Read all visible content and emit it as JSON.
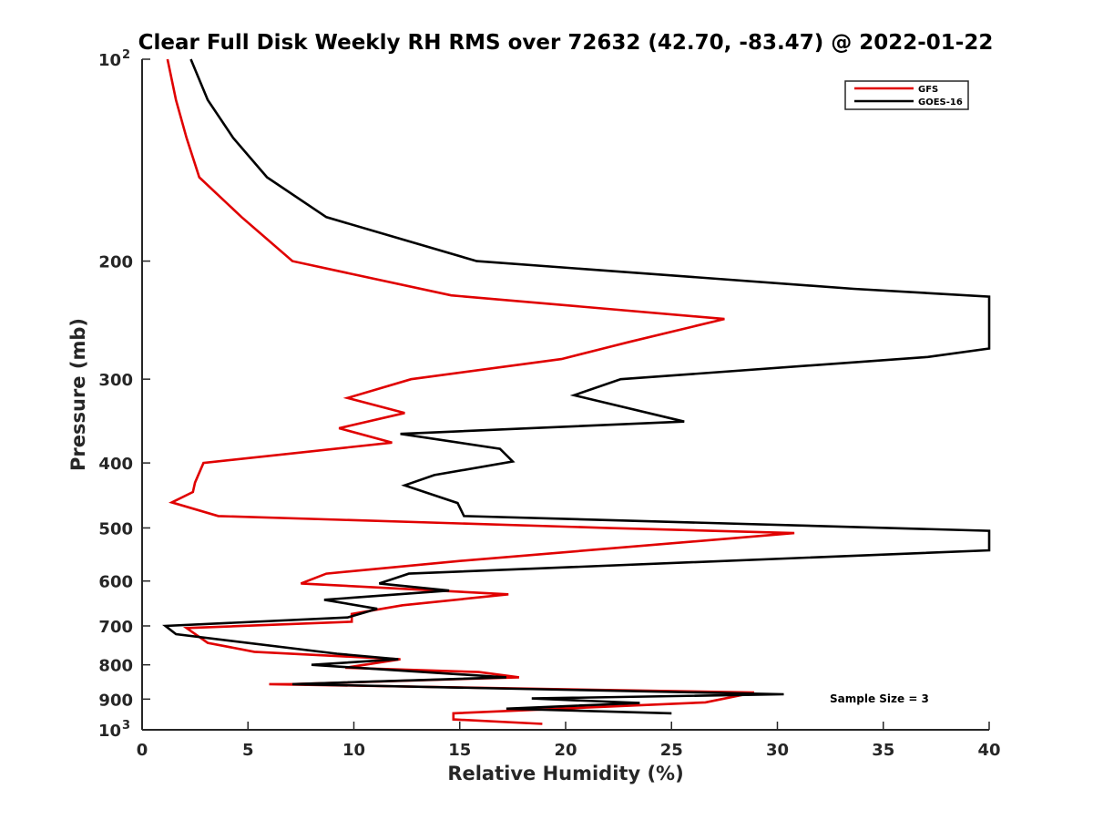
{
  "chart_data": {
    "type": "line",
    "title": "Clear Full Disk Weekly RH RMS over 72632 (42.70, -83.47) @ 2022-01-22",
    "xlabel": "Relative Humidity (%)",
    "ylabel": "Pressure (mb)",
    "xlim": [
      0,
      40
    ],
    "ylim": [
      100,
      1000
    ],
    "y_scale": "log",
    "y_reversed": true,
    "x_ticks": [
      "0",
      "5",
      "10",
      "15",
      "20",
      "25",
      "30",
      "35",
      "40"
    ],
    "y_ticks": [
      {
        "value": 100,
        "label": "10",
        "sup": "2"
      },
      {
        "value": 200,
        "label": "200",
        "sup": ""
      },
      {
        "value": 300,
        "label": "300",
        "sup": ""
      },
      {
        "value": 400,
        "label": "400",
        "sup": ""
      },
      {
        "value": 500,
        "label": "500",
        "sup": ""
      },
      {
        "value": 600,
        "label": "600",
        "sup": ""
      },
      {
        "value": 700,
        "label": "700",
        "sup": ""
      },
      {
        "value": 800,
        "label": "800",
        "sup": ""
      },
      {
        "value": 900,
        "label": "900",
        "sup": ""
      },
      {
        "value": 1000,
        "label": "10",
        "sup": "3"
      }
    ],
    "legend_position": "top-right",
    "grid": false,
    "annotation": "Sample Size = 3",
    "series": [
      {
        "name": "GFS",
        "color": "#e00000",
        "points": [
          [
            1.2,
            100
          ],
          [
            1.6,
            115
          ],
          [
            2.1,
            131
          ],
          [
            2.7,
            150
          ],
          [
            4.7,
            172
          ],
          [
            7.1,
            200
          ],
          [
            14.6,
            225
          ],
          [
            27.5,
            244
          ],
          [
            23,
            264
          ],
          [
            19.8,
            280
          ],
          [
            12.7,
            300
          ],
          [
            9.7,
            320
          ],
          [
            12.4,
            337
          ],
          [
            9.3,
            355
          ],
          [
            11.8,
            373
          ],
          [
            2.9,
            400
          ],
          [
            2.5,
            428
          ],
          [
            2.4,
            442
          ],
          [
            1.4,
            458
          ],
          [
            3.6,
            480
          ],
          [
            21.9,
            500
          ],
          [
            30.8,
            509
          ],
          [
            15,
            560
          ],
          [
            8.7,
            585
          ],
          [
            7.5,
            605
          ],
          [
            17.3,
            628
          ],
          [
            12.3,
            652
          ],
          [
            9.9,
            672
          ],
          [
            9.9,
            690
          ],
          [
            2.1,
            705
          ],
          [
            3.1,
            742
          ],
          [
            5.3,
            765
          ],
          [
            12.2,
            785
          ],
          [
            9.6,
            808
          ],
          [
            15.9,
            820
          ],
          [
            17.8,
            835
          ],
          [
            7,
            855
          ],
          [
            6,
            855
          ],
          [
            28.9,
            880
          ],
          [
            26.6,
            910
          ],
          [
            14.7,
            945
          ],
          [
            14.7,
            965
          ],
          [
            18.9,
            980
          ]
        ]
      },
      {
        "name": "GOES-16",
        "color": "#000000",
        "points": [
          [
            2.3,
            100
          ],
          [
            3.1,
            115
          ],
          [
            4.3,
            131
          ],
          [
            5.9,
            150
          ],
          [
            8.7,
            172
          ],
          [
            15.8,
            200
          ],
          [
            33.6,
            220
          ],
          [
            40,
            226
          ],
          [
            40,
            270
          ],
          [
            37.1,
            278
          ],
          [
            22.6,
            300
          ],
          [
            20.4,
            317
          ],
          [
            25.6,
            347
          ],
          [
            12.2,
            362
          ],
          [
            16.9,
            381
          ],
          [
            17.5,
            398
          ],
          [
            13.8,
            417
          ],
          [
            12.4,
            432
          ],
          [
            14.9,
            459
          ],
          [
            15.2,
            480
          ],
          [
            40,
            505
          ],
          [
            40,
            540
          ],
          [
            12.6,
            585
          ],
          [
            11.2,
            605
          ],
          [
            14.5,
            620
          ],
          [
            8.6,
            640
          ],
          [
            11.1,
            660
          ],
          [
            9.7,
            680
          ],
          [
            1.1,
            700
          ],
          [
            1.6,
            720
          ],
          [
            9.2,
            770
          ],
          [
            12.1,
            785
          ],
          [
            8,
            800
          ],
          [
            17.2,
            835
          ],
          [
            7.1,
            855
          ],
          [
            30.3,
            885
          ],
          [
            18.4,
            898
          ],
          [
            23.5,
            912
          ],
          [
            17.2,
            930
          ],
          [
            25,
            945
          ]
        ]
      }
    ]
  }
}
